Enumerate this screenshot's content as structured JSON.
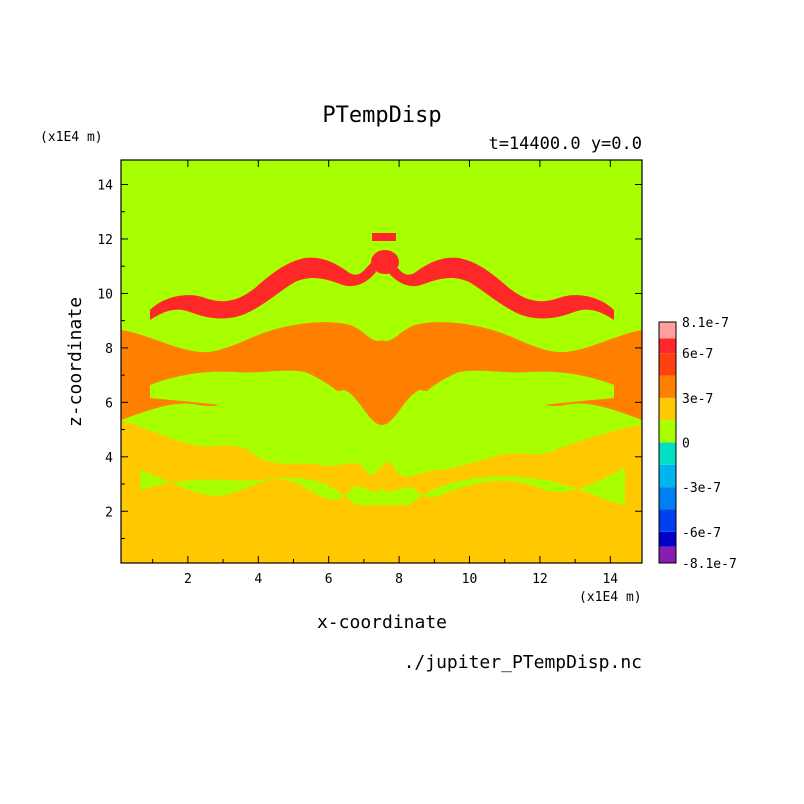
{
  "chart_data": {
    "type": "heatmap",
    "title": "PTempDisp",
    "subtitle": "t=14400.0 y=0.0",
    "xlabel": "x-coordinate",
    "ylabel": "z-coordinate",
    "x_unit": "(x1E4 m)",
    "y_unit": "(x1E4 m)",
    "filename": "./jupiter_PTempDisp.nc",
    "xlim": [
      0.1,
      14.9
    ],
    "ylim": [
      0.1,
      14.9
    ],
    "xticks": [
      2,
      4,
      6,
      8,
      10,
      12,
      14
    ],
    "yticks": [
      2,
      4,
      6,
      8,
      10,
      12,
      14
    ],
    "colorbar": {
      "labels": [
        "8.1e-7",
        "6e-7",
        "3e-7",
        "0",
        "-3e-7",
        "-6e-7",
        "-8.1e-7"
      ],
      "label_values": [
        8.1e-07,
        6e-07,
        3e-07,
        0,
        -3e-07,
        -6e-07,
        -8.1e-07
      ],
      "levels": [
        -8.1e-07,
        -7e-07,
        -6e-07,
        -4.5e-07,
        -3e-07,
        -1.5e-07,
        0,
        1.5e-07,
        3e-07,
        4.5e-07,
        6e-07,
        7e-07,
        8.1e-07
      ],
      "colors": [
        "#8a1ab4",
        "#0000c8",
        "#0040f0",
        "#0080f0",
        "#00b4f0",
        "#00e0c0",
        "#a8ff00",
        "#ffc800",
        "#ff8000",
        "#ff4010",
        "#ff2828",
        "#ffa0a0"
      ]
    },
    "regions": {
      "background_value": 0,
      "lower_band_value": 2e-07,
      "mid_band_value": 3.5e-07,
      "upper_arc_value": 6.5e-07
    }
  }
}
